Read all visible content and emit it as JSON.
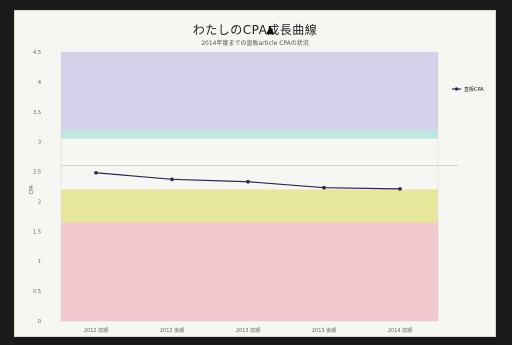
{
  "chart_data": {
    "type": "line",
    "title": "わたしのCPA成長曲線",
    "subtitle": "2014年度までの直販article CPAの状況",
    "ylabel": "CPA",
    "xlabel": "",
    "categories": [
      "2012 前期",
      "2012 後期",
      "2013 前期",
      "2013 後期",
      "2014 前期"
    ],
    "series": [
      {
        "name": "直販CPA",
        "values": [
          2.48,
          2.37,
          2.33,
          2.23,
          2.21
        ],
        "color": "#2d2750"
      }
    ],
    "ylim": [
      0,
      4.5
    ],
    "yticks": [
      "0",
      "0.5",
      "1",
      "1.5",
      "2",
      "2.5",
      "3",
      "3.5",
      "4",
      "4.5"
    ],
    "bands": [
      {
        "from": 0,
        "to": 1.65,
        "color": "#f3c8cf"
      },
      {
        "from": 1.65,
        "to": 2.2,
        "color": "#e6e79a"
      },
      {
        "from": 3.05,
        "to": 3.2,
        "color": "#c4e6e3"
      },
      {
        "from": 3.2,
        "to": 4.5,
        "color": "#d4d1ea"
      }
    ],
    "reference_line": {
      "value": 2.6,
      "color": "#c6dba6"
    },
    "legend_position": "right",
    "grid": false
  }
}
